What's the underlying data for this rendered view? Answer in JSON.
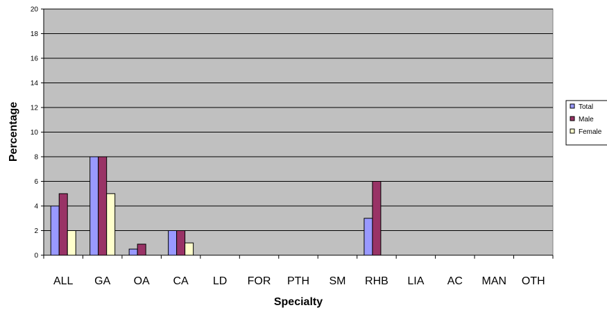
{
  "chart_data": {
    "type": "bar",
    "title": "",
    "xlabel": "Specialty",
    "ylabel": "Percentage",
    "ylim": [
      0,
      20
    ],
    "yticks": [
      0,
      2,
      4,
      6,
      8,
      10,
      12,
      14,
      16,
      18,
      20
    ],
    "categories": [
      "ALL",
      "GA",
      "OA",
      "CA",
      "LD",
      "FOR",
      "PTH",
      "SM",
      "RHB",
      "LIA",
      "AC",
      "MAN",
      "OTH"
    ],
    "series": [
      {
        "name": "Total",
        "color": "#9999ff",
        "values": [
          4,
          8,
          0.5,
          2,
          0,
          0,
          0,
          0,
          3,
          0,
          0,
          0,
          0
        ]
      },
      {
        "name": "Male",
        "color": "#993366",
        "values": [
          5,
          8,
          0.9,
          2,
          0,
          0,
          0,
          0,
          6,
          0,
          0,
          0,
          0
        ]
      },
      {
        "name": "Female",
        "color": "#ffffcc",
        "values": [
          2,
          5,
          0,
          1,
          0,
          0,
          0,
          0,
          0,
          0,
          0,
          0,
          0
        ]
      }
    ],
    "plot_background": "#c0c0c0",
    "grid": true,
    "legend_position": "right"
  }
}
